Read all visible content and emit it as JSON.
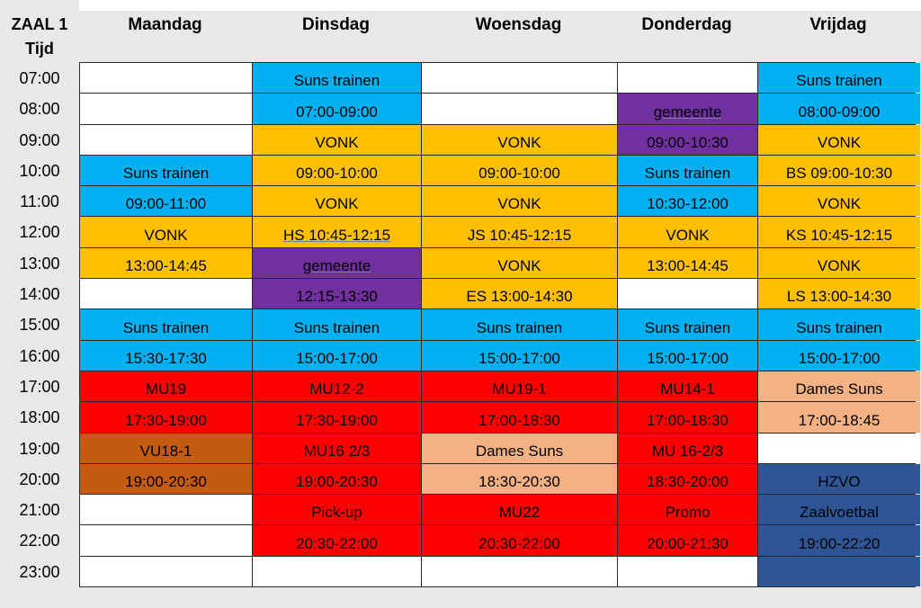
{
  "header": {
    "zaal": "ZAAL 1",
    "tijd": "Tijd",
    "days": [
      "Maandag",
      "Dinsdag",
      "Woensdag",
      "Donderdag",
      "Vrijdag"
    ]
  },
  "times": [
    "07:00",
    "08:00",
    "09:00",
    "10:00",
    "11:00",
    "12:00",
    "13:00",
    "14:00",
    "15:00",
    "16:00",
    "17:00",
    "18:00",
    "19:00",
    "20:00",
    "21:00",
    "22:00",
    "23:00"
  ],
  "colors": {
    "blue": "#00b0f0",
    "yellow": "#ffc000",
    "purple": "#7030a0",
    "red": "#ff0000",
    "brown": "#c55a11",
    "peach": "#f4b183",
    "navy": "#2f5597",
    "white": "#ffffff"
  },
  "schedule": [
    [
      {
        "text": "",
        "color": "white"
      },
      {
        "text": "",
        "color": "white"
      },
      {
        "text": "",
        "color": "white"
      },
      {
        "text": "Suns trainen",
        "color": "blue"
      },
      {
        "text": "09:00-11:00",
        "color": "blue"
      },
      {
        "text": "VONK",
        "color": "yellow"
      },
      {
        "text": "13:00-14:45",
        "color": "yellow"
      },
      {
        "text": "",
        "color": "white"
      },
      {
        "text": "Suns trainen",
        "color": "blue"
      },
      {
        "text": "15:30-17:30",
        "color": "blue"
      },
      {
        "text": "MU19",
        "color": "red"
      },
      {
        "text": "17:30-19:00",
        "color": "red"
      },
      {
        "text": "VU18-1",
        "color": "brown"
      },
      {
        "text": "19:00-20:30",
        "color": "brown"
      },
      {
        "text": "",
        "color": "white"
      },
      {
        "text": "",
        "color": "white"
      },
      {
        "text": "",
        "color": "white"
      }
    ],
    [
      {
        "text": "Suns trainen",
        "color": "blue"
      },
      {
        "text": "07:00-09:00",
        "color": "blue"
      },
      {
        "text": "VONK",
        "color": "yellow"
      },
      {
        "text": "09:00-10:00",
        "color": "yellow"
      },
      {
        "text": "VONK",
        "color": "yellow"
      },
      {
        "text": "HS  10:45-12:15",
        "color": "yellow",
        "underline": true
      },
      {
        "text": "gemeente",
        "color": "purple",
        "underline": true
      },
      {
        "text": "12:15-13:30",
        "color": "purple"
      },
      {
        "text": "Suns trainen",
        "color": "blue"
      },
      {
        "text": "15:00-17:00",
        "color": "blue"
      },
      {
        "text": "MU12-2",
        "color": "red"
      },
      {
        "text": "17:30-19:00",
        "color": "red"
      },
      {
        "text": "MU16 2/3",
        "color": "red"
      },
      {
        "text": "19:00-20:30",
        "color": "red"
      },
      {
        "text": "Pick-up",
        "color": "red"
      },
      {
        "text": "20:30-22:00",
        "color": "red"
      },
      {
        "text": "",
        "color": "white"
      }
    ],
    [
      {
        "text": "",
        "color": "white"
      },
      {
        "text": "",
        "color": "white"
      },
      {
        "text": "VONK",
        "color": "yellow"
      },
      {
        "text": "09:00-10:00",
        "color": "yellow"
      },
      {
        "text": "VONK",
        "color": "yellow"
      },
      {
        "text": "JS 10:45-12:15",
        "color": "yellow"
      },
      {
        "text": "VONK",
        "color": "yellow"
      },
      {
        "text": "ES 13:00-14:30",
        "color": "yellow"
      },
      {
        "text": "Suns trainen",
        "color": "blue"
      },
      {
        "text": "15:00-17:00",
        "color": "blue"
      },
      {
        "text": "MU19-1",
        "color": "red"
      },
      {
        "text": "17:00-18:30",
        "color": "red"
      },
      {
        "text": "Dames Suns",
        "color": "peach"
      },
      {
        "text": "18:30-20:30",
        "color": "peach"
      },
      {
        "text": "MU22",
        "color": "red"
      },
      {
        "text": "20:30-22:00",
        "color": "red"
      },
      {
        "text": "",
        "color": "white"
      }
    ],
    [
      {
        "text": "",
        "color": "white"
      },
      {
        "text": "gemeente",
        "color": "purple",
        "underline": true
      },
      {
        "text": "09:00-10:30",
        "color": "purple"
      },
      {
        "text": "Suns trainen",
        "color": "blue"
      },
      {
        "text": "10:30-12:00",
        "color": "blue"
      },
      {
        "text": "VONK",
        "color": "yellow"
      },
      {
        "text": "13:00-14:45",
        "color": "yellow"
      },
      {
        "text": "",
        "color": "white"
      },
      {
        "text": "Suns trainen",
        "color": "blue"
      },
      {
        "text": "15:00-17:00",
        "color": "blue"
      },
      {
        "text": "MU14-1",
        "color": "red"
      },
      {
        "text": "17:00-18:30",
        "color": "red"
      },
      {
        "text": "MU 16-2/3",
        "color": "red"
      },
      {
        "text": "18:30-20:00",
        "color": "red"
      },
      {
        "text": "Promo",
        "color": "red"
      },
      {
        "text": "20:00-21:30",
        "color": "red"
      },
      {
        "text": "",
        "color": "white"
      }
    ],
    [
      {
        "text": "Suns trainen",
        "color": "blue"
      },
      {
        "text": "08:00-09:00",
        "color": "blue"
      },
      {
        "text": "VONK",
        "color": "yellow"
      },
      {
        "text": "BS 09:00-10:30",
        "color": "yellow"
      },
      {
        "text": "VONK",
        "color": "yellow"
      },
      {
        "text": "KS 10:45-12:15",
        "color": "yellow"
      },
      {
        "text": "VONK",
        "color": "yellow"
      },
      {
        "text": "LS 13:00-14:30",
        "color": "yellow"
      },
      {
        "text": "Suns trainen",
        "color": "blue"
      },
      {
        "text": "15:00-17:00",
        "color": "blue"
      },
      {
        "text": "Dames Suns",
        "color": "peach"
      },
      {
        "text": "17:00-18:45",
        "color": "peach"
      },
      {
        "text": "",
        "color": "white"
      },
      {
        "text": "HZVO",
        "color": "navy"
      },
      {
        "text": "Zaalvoetbal",
        "color": "navy"
      },
      {
        "text": "19:00-22:20",
        "color": "navy"
      },
      {
        "text": "",
        "color": "navy"
      }
    ]
  ]
}
